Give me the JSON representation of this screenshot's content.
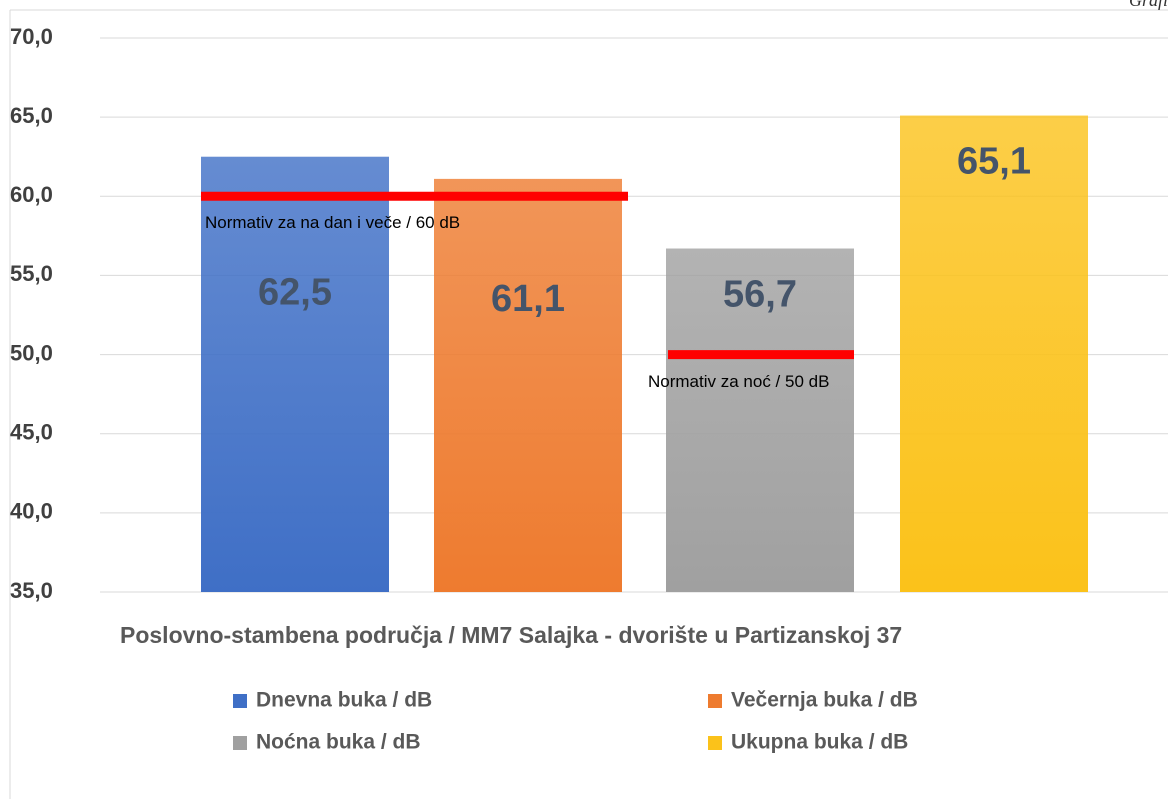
{
  "chart_data": {
    "type": "bar",
    "corner_text": "Grafi",
    "categories": [
      "Poslovno-stambena područja / MM7 Salajka - dvorište u Partizanskoj 37"
    ],
    "series": [
      {
        "name": "Dnevna buka / dB",
        "color": "#3f6fc6",
        "values": [
          62.5
        ],
        "value_labels": [
          "62,5"
        ]
      },
      {
        "name": "Večernja buka / dB",
        "color": "#ee7b2f",
        "values": [
          61.1
        ],
        "value_labels": [
          "61,1"
        ]
      },
      {
        "name": "Noćna buka / dB",
        "color": "#a0a0a0",
        "values": [
          56.7
        ],
        "value_labels": [
          "56,7"
        ]
      },
      {
        "name": "Ukupna buka / dB",
        "color": "#fbc21a",
        "values": [
          65.1
        ],
        "value_labels": [
          "65,1"
        ]
      }
    ],
    "reference_lines": [
      {
        "value": 60,
        "label": "Normativ za na dan i veče / 60 dB",
        "color": "#ff0000"
      },
      {
        "value": 50,
        "label": "Normativ za noć / 50 dB",
        "color": "#ff0000"
      }
    ],
    "ylim": [
      35,
      70
    ],
    "yticks": [
      {
        "value": 35,
        "label": "35,0"
      },
      {
        "value": 40,
        "label": "40,0"
      },
      {
        "value": 45,
        "label": "45,0"
      },
      {
        "value": 50,
        "label": "50,0"
      },
      {
        "value": 55,
        "label": "55,0"
      },
      {
        "value": 60,
        "label": "60,0"
      },
      {
        "value": 65,
        "label": "65,0"
      },
      {
        "value": 70,
        "label": "70,0"
      }
    ],
    "grid": true
  }
}
